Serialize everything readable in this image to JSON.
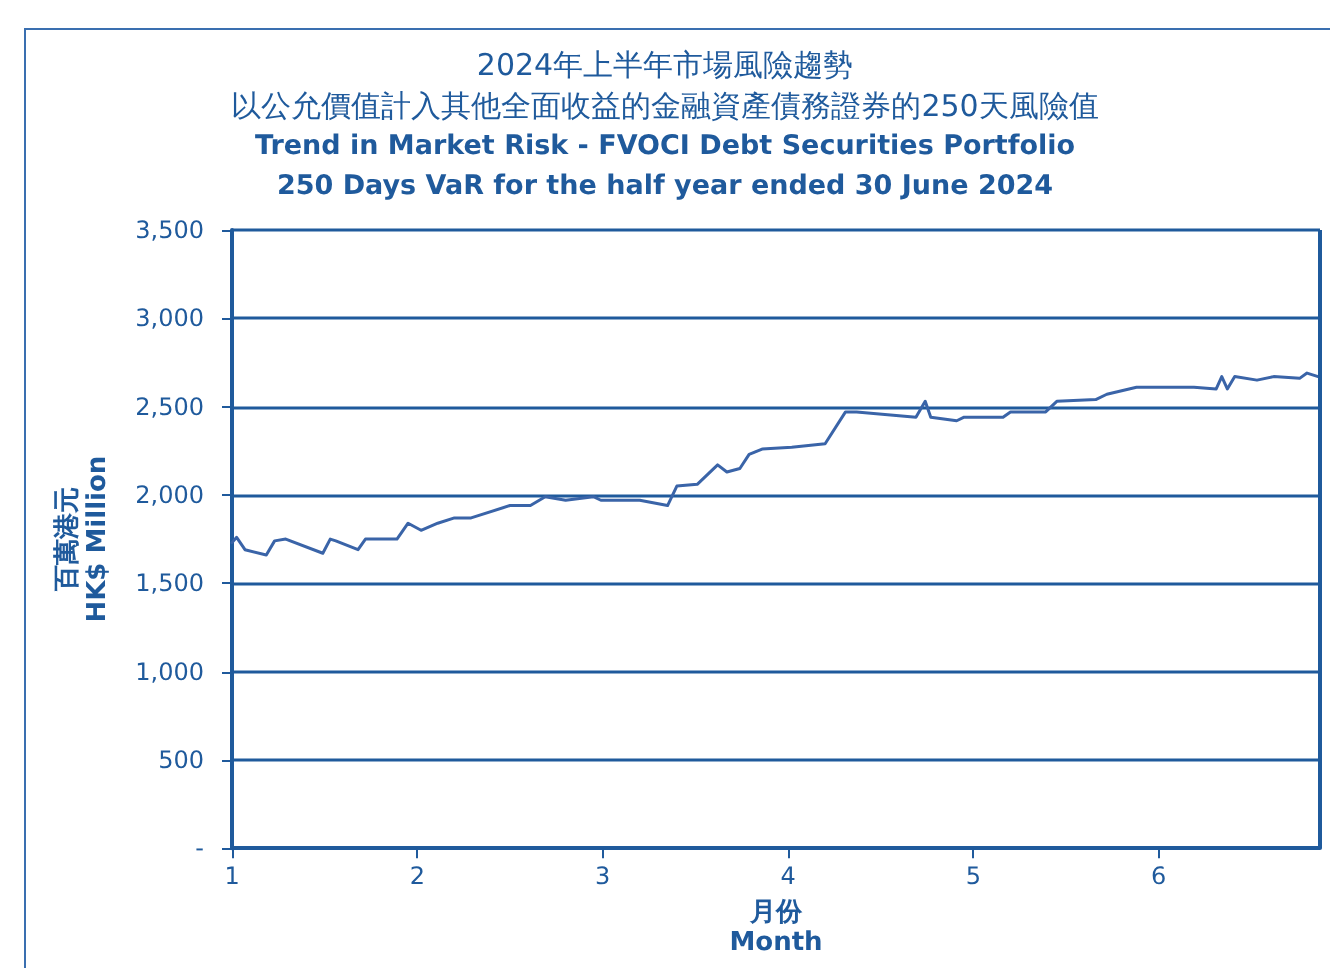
{
  "chart_data": {
    "type": "line",
    "title": "2024年上半年市場風險趨勢",
    "subtitle": "以公允價值計入其他全面收益的金融資產債務證券的250天風險值\nTrend in Market Risk - FVOCI Debt Securities Portfolio\n250 Days VaR for the half year ended 30 June 2024",
    "xlabel": "月份\nMonth",
    "ylabel": "百萬港元\nHK$ Million",
    "series": [
      {
        "color": "#3a64a8",
        "x": [
          1.0,
          1.025,
          1.07,
          1.185,
          1.23,
          1.29,
          1.49,
          1.53,
          1.56,
          1.68,
          1.72,
          1.89,
          1.95,
          2.02,
          2.11,
          2.2,
          2.29,
          2.5,
          2.61,
          2.69,
          2.8,
          2.95,
          2.99,
          3.2,
          3.35,
          3.4,
          3.51,
          3.62,
          3.67,
          3.74,
          3.79,
          3.86,
          4.02,
          4.2,
          4.31,
          4.37,
          4.69,
          4.74,
          4.77,
          4.91,
          4.95,
          5.16,
          5.2,
          5.39,
          5.45,
          5.66,
          5.72,
          5.88,
          6.19,
          6.31,
          6.34,
          6.37,
          6.41,
          6.53,
          6.62,
          6.76,
          6.8,
          6.86
        ],
        "values": [
          1730,
          1760,
          1690,
          1660,
          1740,
          1750,
          1670,
          1750,
          1740,
          1690,
          1750,
          1750,
          1840,
          1800,
          1840,
          1870,
          1870,
          1940,
          1940,
          1990,
          1970,
          1990,
          1970,
          1970,
          1940,
          2050,
          2060,
          2170,
          2130,
          2150,
          2230,
          2260,
          2270,
          2290,
          2470,
          2470,
          2440,
          2530,
          2440,
          2420,
          2440,
          2440,
          2470,
          2470,
          2530,
          2540,
          2570,
          2610,
          2610,
          2600,
          2670,
          2600,
          2670,
          2650,
          2670,
          2660,
          2690,
          2670
        ]
      }
    ],
    "xlim": [
      1,
      6.87
    ],
    "xticks": [
      1,
      2,
      3,
      4,
      5,
      6
    ],
    "ylim": [
      0,
      3500
    ],
    "yticks": [
      {
        "value": 0,
        "label": "-"
      },
      {
        "value": 500,
        "label": "500"
      },
      {
        "value": 1000,
        "label": "1,000"
      },
      {
        "value": 1500,
        "label": "1,500"
      },
      {
        "value": 2000,
        "label": "2,000"
      },
      {
        "value": 2500,
        "label": "2,500"
      },
      {
        "value": 3000,
        "label": "3,000"
      },
      {
        "value": 3500,
        "label": "3,500"
      }
    ],
    "grid": "y",
    "marker": "none",
    "line_style": "solid"
  }
}
